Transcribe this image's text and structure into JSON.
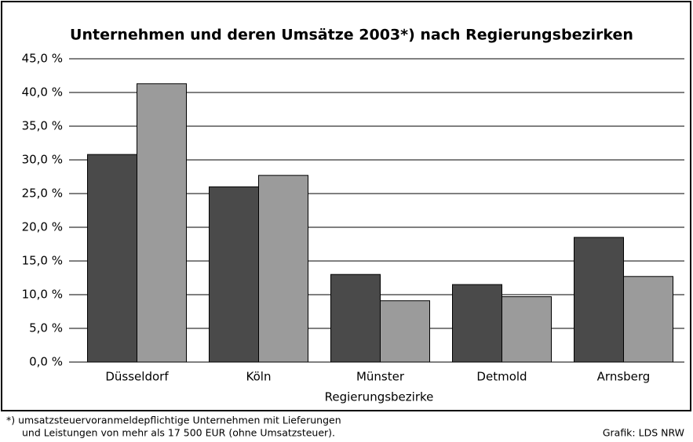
{
  "chart_data": {
    "type": "bar",
    "title": "Unternehmen und deren Umsätze 2003*) nach Regierungsbezirken",
    "x_label": "Regierungsbezirke",
    "categories": [
      "Düsseldorf",
      "Köln",
      "Münster",
      "Detmold",
      "Arnsberg"
    ],
    "series": [
      {
        "color": "#4a4a4a",
        "values": [
          30.8,
          26.0,
          13.0,
          11.5,
          18.5
        ]
      },
      {
        "color": "#9b9b9b",
        "values": [
          41.3,
          27.7,
          9.1,
          9.7,
          12.7
        ]
      }
    ],
    "ylim": [
      0,
      45
    ],
    "yticks": [
      {
        "value": 0,
        "label": "0,0 %"
      },
      {
        "value": 5,
        "label": "5,0 %"
      },
      {
        "value": 10,
        "label": "10,0 %"
      },
      {
        "value": 15,
        "label": "15,0 %"
      },
      {
        "value": 20,
        "label": "20,0 %"
      },
      {
        "value": 25,
        "label": "25,0 %"
      },
      {
        "value": 30,
        "label": "30,0 %"
      },
      {
        "value": 35,
        "label": "35,0 %"
      },
      {
        "value": 40,
        "label": "40,0 %"
      },
      {
        "value": 45,
        "label": "45,0 %"
      }
    ],
    "grid": true,
    "footnote": [
      "*)  umsatzsteuervoranmeldepflichtige Unternehmen mit Lieferungen",
      "und Leistungen von mehr als 17 500 EUR (ohne Umsatzsteuer)."
    ],
    "source": "Grafik: LDS NRW"
  }
}
